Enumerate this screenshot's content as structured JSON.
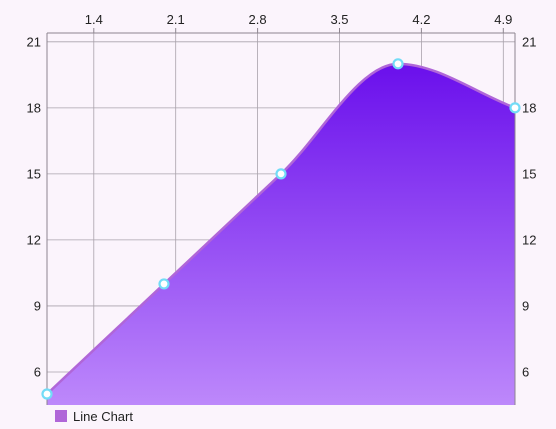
{
  "chart_data": {
    "type": "area",
    "title": "",
    "xlabel": "",
    "ylabel": "",
    "x_ticks": [
      "1.4",
      "2.1",
      "2.8",
      "3.5",
      "4.2",
      "4.9"
    ],
    "x_tick_values": [
      1.4,
      2.1,
      2.8,
      3.5,
      4.2,
      4.9
    ],
    "y_ticks": [
      6,
      9,
      12,
      15,
      18,
      21
    ],
    "xlim": [
      1.0,
      5.0
    ],
    "ylim": [
      4.5,
      21.4
    ],
    "x_axis_position": "top",
    "y_axis_labels": "left-and-right",
    "grid": true,
    "smooth": true,
    "legend_position": "bottom-left",
    "series": [
      {
        "name": "Line Chart",
        "x": [
          1.0,
          2.0,
          3.0,
          4.0,
          5.0
        ],
        "values": [
          5,
          10,
          15,
          20,
          18
        ],
        "line_color": "#b066d8",
        "fill_top_color": "#6a0fec",
        "fill_bottom_color": "#bd88fb",
        "marker_color": "#72dcf7"
      }
    ]
  }
}
